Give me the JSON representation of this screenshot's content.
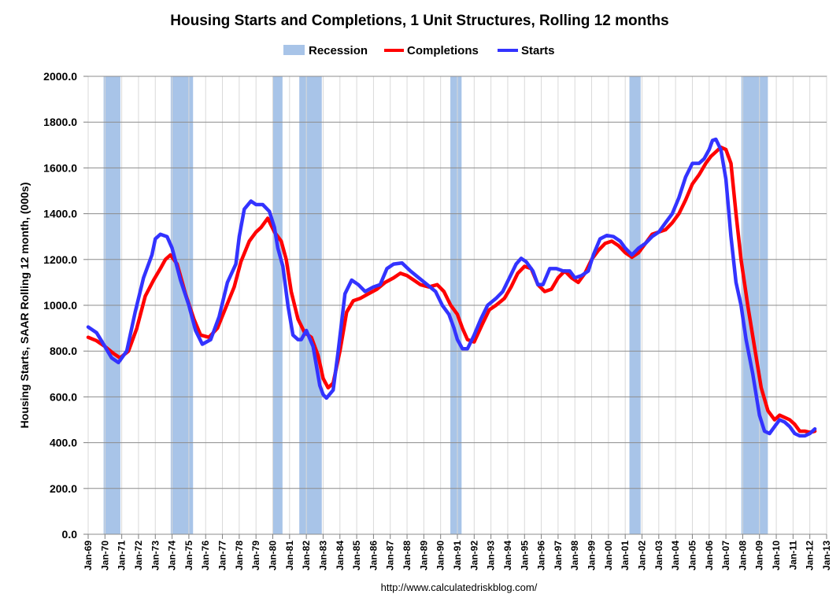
{
  "chart_data": {
    "type": "line",
    "title": "Housing Starts and Completions, 1 Unit Structures, Rolling 12 months",
    "ylabel": "Housing Starts, SAAR Rolling 12 month, (000s)",
    "xlabel": "",
    "source": "http://www.calculatedriskblog.com/",
    "ylim": [
      0,
      2000
    ],
    "xlim": [
      1969.0,
      2013.0
    ],
    "y_ticks": [
      "0.0",
      "200.0",
      "400.0",
      "600.0",
      "800.0",
      "1000.0",
      "1200.0",
      "1400.0",
      "1600.0",
      "1800.0",
      "2000.0"
    ],
    "x_ticks": [
      "Jan-69",
      "Jan-70",
      "Jan-71",
      "Jan-72",
      "Jan-73",
      "Jan-74",
      "Jan-75",
      "Jan-76",
      "Jan-77",
      "Jan-78",
      "Jan-79",
      "Jan-80",
      "Jan-81",
      "Jan-82",
      "Jan-83",
      "Jan-84",
      "Jan-85",
      "Jan-86",
      "Jan-87",
      "Jan-88",
      "Jan-89",
      "Jan-90",
      "Jan-91",
      "Jan-92",
      "Jan-93",
      "Jan-94",
      "Jan-95",
      "Jan-96",
      "Jan-97",
      "Jan-98",
      "Jan-99",
      "Jan-00",
      "Jan-01",
      "Jan-02",
      "Jan-03",
      "Jan-04",
      "Jan-05",
      "Jan-06",
      "Jan-07",
      "Jan-08",
      "Jan-09",
      "Jan-10",
      "Jan-11",
      "Jan-12",
      "Jan-13"
    ],
    "grid": true,
    "legend_position": "top",
    "legend": [
      {
        "name": "Recession",
        "color": "#a8c4e8",
        "kind": "box"
      },
      {
        "name": "Completions",
        "color": "#ff0000",
        "kind": "line"
      },
      {
        "name": "Starts",
        "color": "#3333ff",
        "kind": "line"
      }
    ],
    "recessions": [
      [
        1969.92,
        1970.92
      ],
      [
        1973.92,
        1975.25
      ],
      [
        1980.0,
        1980.58
      ],
      [
        1981.58,
        1982.92
      ],
      [
        1990.58,
        1991.25
      ],
      [
        2001.25,
        2001.92
      ],
      [
        2007.92,
        2009.5
      ]
    ],
    "series": [
      {
        "name": "Starts",
        "color": "#3333ff",
        "x": [
          1969.0,
          1969.5,
          1970.0,
          1970.4,
          1970.8,
          1971.3,
          1971.8,
          1972.3,
          1972.8,
          1973.0,
          1973.3,
          1973.7,
          1974.0,
          1974.5,
          1975.0,
          1975.4,
          1975.8,
          1976.3,
          1976.8,
          1977.3,
          1977.8,
          1978.0,
          1978.3,
          1978.7,
          1979.0,
          1979.4,
          1979.8,
          1980.1,
          1980.3,
          1980.6,
          1980.9,
          1981.2,
          1981.5,
          1981.7,
          1982.0,
          1982.4,
          1982.8,
          1983.0,
          1983.2,
          1983.6,
          1983.9,
          1984.3,
          1984.7,
          1985.1,
          1985.5,
          1986.0,
          1986.4,
          1986.8,
          1987.2,
          1987.7,
          1988.2,
          1988.7,
          1989.2,
          1989.7,
          1990.1,
          1990.5,
          1990.8,
          1991.0,
          1991.3,
          1991.6,
          1992.0,
          1992.4,
          1992.8,
          1993.3,
          1993.7,
          1994.1,
          1994.5,
          1994.8,
          1995.1,
          1995.5,
          1995.8,
          1996.1,
          1996.5,
          1996.9,
          1997.3,
          1997.7,
          1998.0,
          1998.4,
          1998.8,
          1999.1,
          1999.5,
          1999.9,
          2000.3,
          2000.7,
          2001.0,
          2001.4,
          2001.8,
          2002.2,
          2002.6,
          2003.0,
          2003.4,
          2003.8,
          2004.2,
          2004.6,
          2005.0,
          2005.4,
          2005.7,
          2006.0,
          2006.2,
          2006.4,
          2006.7,
          2007.0,
          2007.3,
          2007.6,
          2007.9,
          2008.2,
          2008.6,
          2009.0,
          2009.3,
          2009.6,
          2009.9,
          2010.2,
          2010.5,
          2010.8,
          2011.1,
          2011.4,
          2011.7,
          2012.0,
          2012.3
        ],
        "values": [
          905,
          880,
          820,
          770,
          750,
          800,
          970,
          1120,
          1220,
          1290,
          1310,
          1300,
          1250,
          1110,
          1000,
          890,
          830,
          850,
          950,
          1100,
          1180,
          1300,
          1420,
          1455,
          1440,
          1440,
          1410,
          1340,
          1250,
          1170,
          1000,
          870,
          850,
          850,
          890,
          820,
          650,
          610,
          595,
          630,
          800,
          1050,
          1110,
          1090,
          1060,
          1080,
          1090,
          1160,
          1180,
          1185,
          1150,
          1120,
          1090,
          1060,
          1000,
          960,
          900,
          850,
          810,
          810,
          870,
          940,
          1000,
          1030,
          1060,
          1120,
          1180,
          1205,
          1190,
          1150,
          1090,
          1090,
          1160,
          1160,
          1150,
          1150,
          1120,
          1130,
          1150,
          1220,
          1290,
          1305,
          1300,
          1280,
          1250,
          1220,
          1250,
          1270,
          1300,
          1320,
          1360,
          1400,
          1470,
          1560,
          1620,
          1620,
          1640,
          1680,
          1720,
          1725,
          1680,
          1550,
          1300,
          1100,
          1000,
          850,
          700,
          520,
          450,
          440,
          470,
          500,
          490,
          470,
          440,
          430,
          430,
          440,
          460
        ]
      },
      {
        "name": "Completions",
        "color": "#ff0000",
        "x": [
          1969.0,
          1969.5,
          1970.0,
          1970.5,
          1970.9,
          1971.4,
          1971.9,
          1972.4,
          1972.9,
          1973.3,
          1973.6,
          1973.9,
          1974.3,
          1974.8,
          1975.3,
          1975.7,
          1976.2,
          1976.7,
          1977.2,
          1977.7,
          1978.1,
          1978.6,
          1979.0,
          1979.3,
          1979.7,
          1980.1,
          1980.5,
          1980.8,
          1981.1,
          1981.5,
          1981.9,
          1982.3,
          1982.7,
          1983.0,
          1983.3,
          1983.6,
          1984.0,
          1984.4,
          1984.8,
          1985.2,
          1985.7,
          1986.2,
          1986.7,
          1987.2,
          1987.6,
          1988.0,
          1988.4,
          1988.8,
          1989.3,
          1989.8,
          1990.2,
          1990.6,
          1991.0,
          1991.3,
          1991.6,
          1992.0,
          1992.5,
          1992.9,
          1993.3,
          1993.8,
          1994.2,
          1994.6,
          1995.0,
          1995.4,
          1995.8,
          1996.2,
          1996.6,
          1997.0,
          1997.4,
          1997.8,
          1998.2,
          1998.6,
          1999.0,
          1999.4,
          1999.8,
          2000.2,
          2000.6,
          2001.0,
          2001.4,
          2001.8,
          2002.2,
          2002.6,
          2003.0,
          2003.4,
          2003.8,
          2004.2,
          2004.6,
          2005.0,
          2005.4,
          2005.8,
          2006.1,
          2006.4,
          2006.7,
          2007.0,
          2007.3,
          2007.6,
          2007.9,
          2008.3,
          2008.7,
          2009.1,
          2009.5,
          2009.9,
          2010.2,
          2010.5,
          2010.8,
          2011.1,
          2011.4,
          2011.7,
          2012.0,
          2012.3
        ],
        "values": [
          860,
          845,
          820,
          790,
          770,
          800,
          900,
          1040,
          1110,
          1160,
          1200,
          1220,
          1180,
          1050,
          940,
          870,
          860,
          900,
          990,
          1080,
          1190,
          1280,
          1320,
          1340,
          1380,
          1320,
          1280,
          1200,
          1060,
          940,
          880,
          860,
          780,
          680,
          640,
          660,
          800,
          970,
          1020,
          1030,
          1050,
          1070,
          1100,
          1120,
          1140,
          1130,
          1110,
          1090,
          1080,
          1090,
          1060,
          1000,
          960,
          900,
          850,
          840,
          920,
          980,
          1000,
          1030,
          1080,
          1140,
          1170,
          1160,
          1090,
          1060,
          1070,
          1120,
          1150,
          1120,
          1100,
          1140,
          1200,
          1240,
          1270,
          1280,
          1260,
          1230,
          1210,
          1230,
          1270,
          1310,
          1320,
          1330,
          1360,
          1400,
          1460,
          1530,
          1570,
          1620,
          1650,
          1670,
          1690,
          1680,
          1620,
          1400,
          1200,
          1000,
          820,
          640,
          540,
          500,
          520,
          510,
          500,
          480,
          450,
          450,
          445,
          450
        ]
      }
    ]
  }
}
